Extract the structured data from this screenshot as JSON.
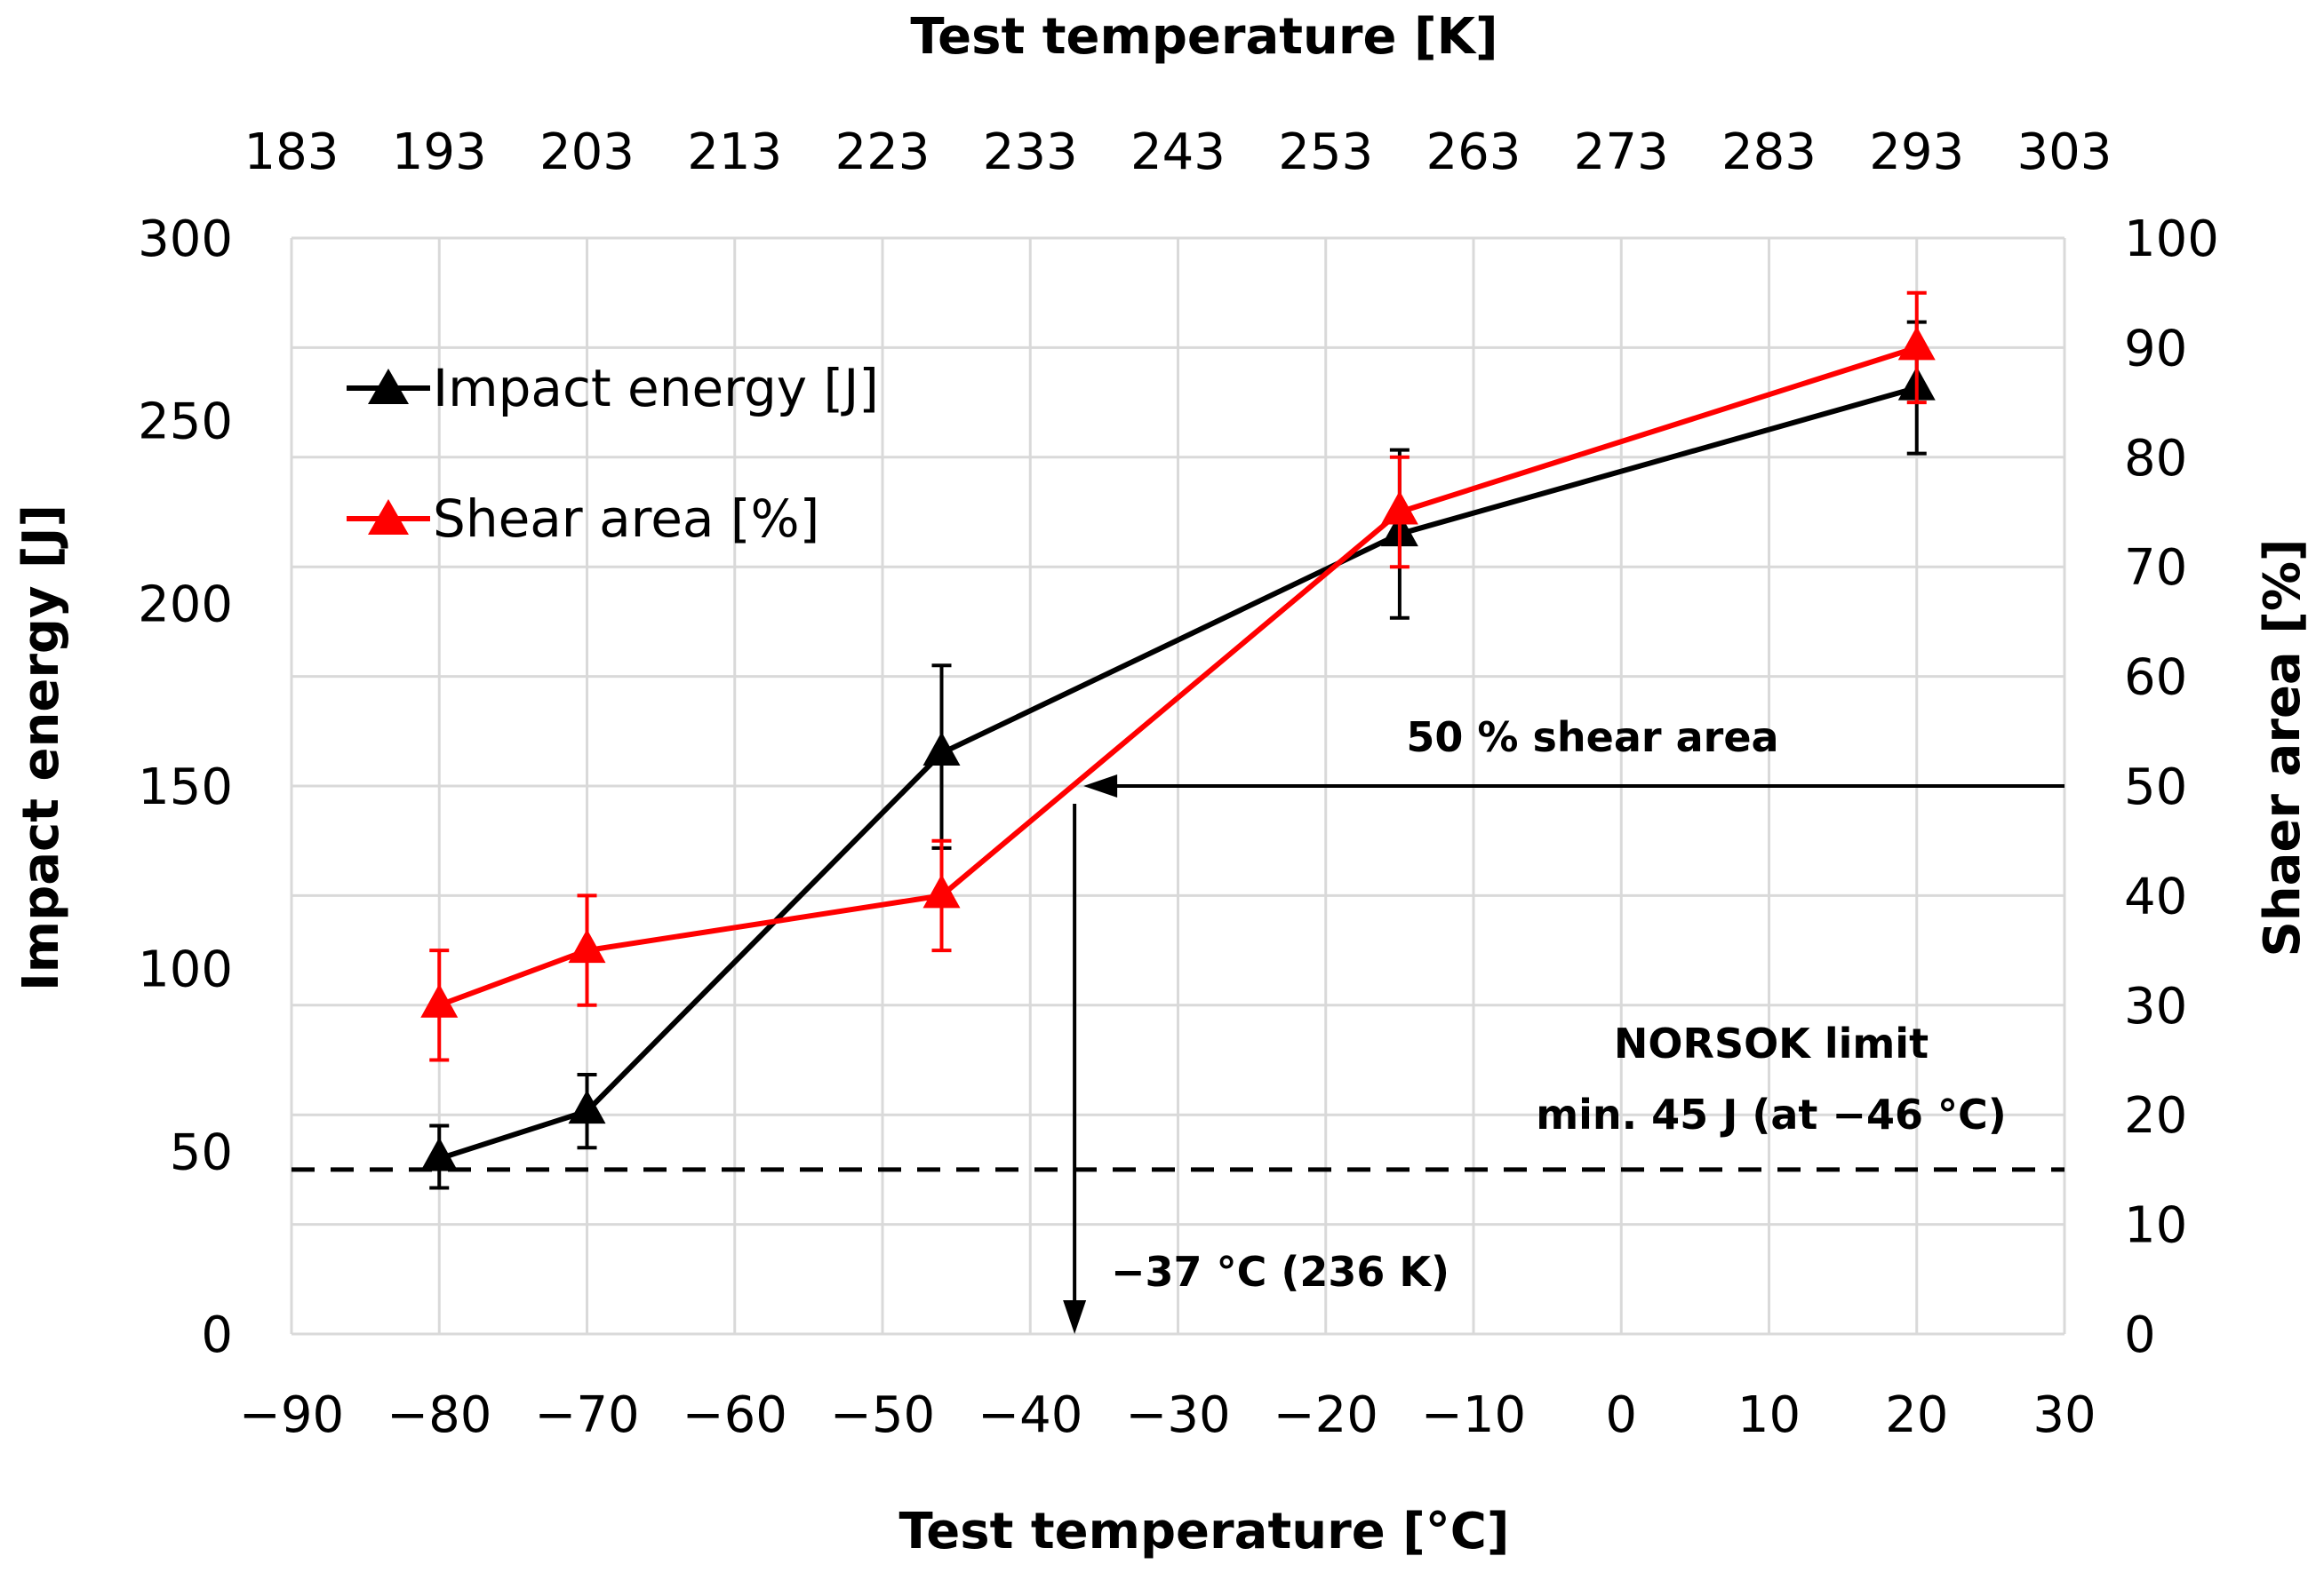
{
  "chart_data": {
    "type": "line",
    "x_bottom": {
      "label": "Test temperature [°C]",
      "range": [
        -90,
        30
      ],
      "ticks": [
        -90,
        -80,
        -70,
        -60,
        -50,
        -40,
        -30,
        -20,
        -10,
        0,
        10,
        20,
        30
      ],
      "tick_labels": [
        "−90",
        "−80",
        "−70",
        "−60",
        "−50",
        "−40",
        "−30",
        "−20",
        "−10",
        "0",
        "10",
        "20",
        "30"
      ]
    },
    "x_top": {
      "label": "Test temperature [K]",
      "tick_labels": [
        "183",
        "193",
        "203",
        "213",
        "223",
        "233",
        "243",
        "253",
        "263",
        "273",
        "283",
        "293",
        "303"
      ]
    },
    "y_left": {
      "label": "Impact energy [J]",
      "range": [
        0,
        300
      ],
      "ticks": [
        0,
        50,
        100,
        150,
        200,
        250,
        300
      ],
      "tick_labels": [
        "0",
        "50",
        "100",
        "150",
        "200",
        "250",
        "300"
      ]
    },
    "y_right": {
      "label": "Shaer area [%]",
      "range": [
        0,
        100
      ],
      "ticks": [
        0,
        10,
        20,
        30,
        40,
        50,
        60,
        70,
        80,
        90,
        100
      ],
      "tick_labels": [
        "0",
        "10",
        "20",
        "30",
        "40",
        "50",
        "60",
        "70",
        "80",
        "90",
        "100"
      ]
    },
    "grid": true,
    "series": [
      {
        "name": "Impact energy [J]",
        "axis": "left",
        "color": "#000000",
        "x": [
          -80,
          -70,
          -46,
          -15,
          20
        ],
        "y": [
          48,
          61,
          159,
          219,
          259
        ],
        "err_low": [
          8,
          10,
          26,
          23,
          18
        ],
        "err_high": [
          9,
          10,
          24,
          23,
          18
        ]
      },
      {
        "name": "Shear area [%]",
        "axis": "right",
        "color": "#ff0000",
        "x": [
          -80,
          -70,
          -46,
          -15,
          20
        ],
        "y": [
          30,
          35,
          40,
          75,
          90
        ],
        "err_low": [
          5,
          5,
          5,
          5,
          5
        ],
        "err_high": [
          5,
          5,
          5,
          5,
          5
        ]
      }
    ],
    "legend": {
      "placement": "top-left",
      "items": [
        "Impact energy [J]",
        "Shear area [%]"
      ]
    },
    "reference_lines": {
      "norsok_limit_J": 45,
      "shear_50_percent": 50,
      "transition_temperature_C": -37
    },
    "annotations": {
      "shear": "50 % shear area",
      "norsok_line1": "NORSOK limit",
      "norsok_line2": "min. 45 J (at −46 °C)",
      "transition": "−37 °C (236 K)"
    }
  }
}
